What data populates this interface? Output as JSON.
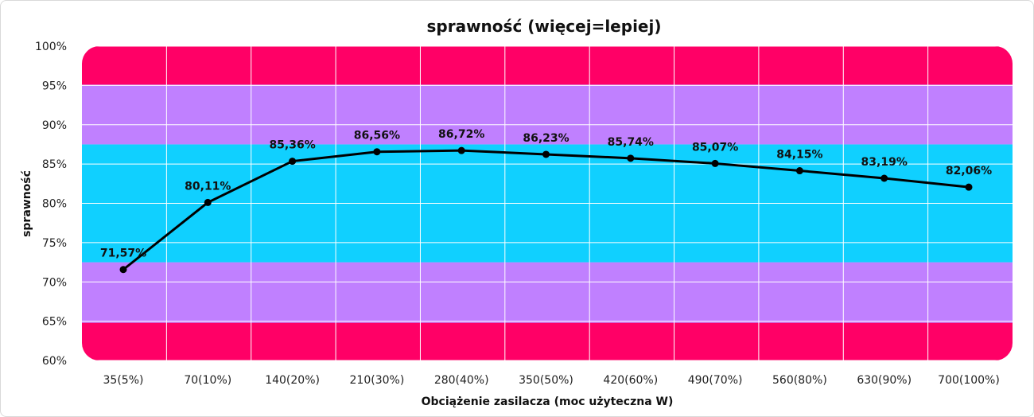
{
  "chart_data": {
    "type": "line",
    "title": "sprawność (więcej=lepiej)",
    "xlabel": "Obciążenie zasilacza (moc użyteczna W)",
    "ylabel": "sprawność",
    "ylim": [
      60,
      100
    ],
    "yticks": [
      "60%",
      "65%",
      "70%",
      "75%",
      "80%",
      "85%",
      "90%",
      "95%",
      "100%"
    ],
    "ytick_values": [
      60,
      65,
      70,
      75,
      80,
      85,
      90,
      95,
      100
    ],
    "categories": [
      "35(5%)",
      "70(10%)",
      "140(20%)",
      "210(30%)",
      "280(40%)",
      "350(50%)",
      "420(60%)",
      "490(70%)",
      "560(80%)",
      "630(90%)",
      "700(100%)"
    ],
    "values": [
      71.57,
      80.11,
      85.36,
      86.56,
      86.72,
      86.23,
      85.74,
      85.07,
      84.15,
      83.19,
      82.06
    ],
    "data_labels": [
      "71,57%",
      "80,11%",
      "85,36%",
      "86,56%",
      "86,72%",
      "86,23%",
      "85,74%",
      "85,07%",
      "84,15%",
      "83,19%",
      "82,06%"
    ],
    "grid": true,
    "bands": [
      {
        "from": 60,
        "to": 64.8,
        "color": "#ff0066"
      },
      {
        "from": 64.8,
        "to": 72.5,
        "color": "#c080ff"
      },
      {
        "from": 72.5,
        "to": 87.5,
        "color": "#10d0ff"
      },
      {
        "from": 87.5,
        "to": 95.1,
        "color": "#c080ff"
      },
      {
        "from": 95.1,
        "to": 100,
        "color": "#ff0066"
      }
    ],
    "line_color": "#000000"
  }
}
